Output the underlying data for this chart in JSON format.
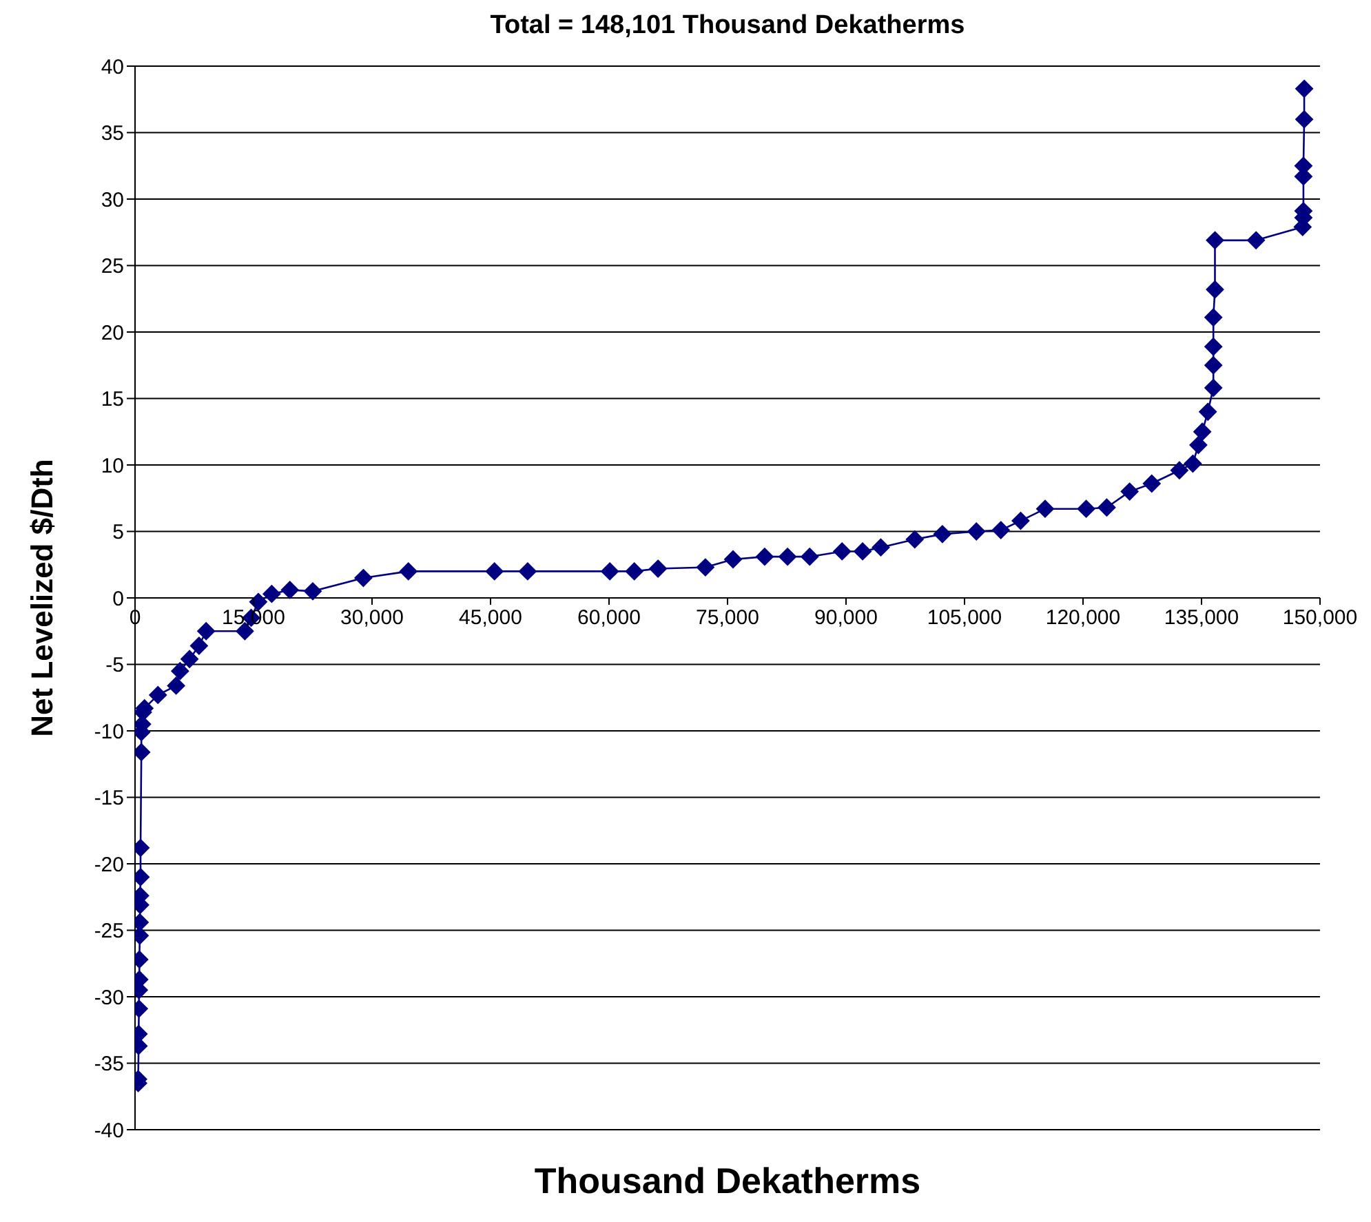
{
  "chart_data": {
    "type": "line",
    "title": "Total = 148,101 Thousand Dekatherms",
    "xlabel": "Thousand Dekatherms",
    "ylabel": "Net Levelized $/Dth",
    "xlim": [
      0,
      150000
    ],
    "xticks": [
      0,
      {
        "value": 15000,
        "label": "15,000"
      },
      {
        "value": 30000,
        "label": "30,000"
      },
      {
        "value": 45000,
        "label": "45,000"
      },
      {
        "value": 60000,
        "label": "60,000"
      },
      {
        "value": 75000,
        "label": "75,000"
      },
      {
        "value": 90000,
        "label": "90,000"
      },
      {
        "value": 105000,
        "label": "105,000"
      },
      {
        "value": 120000,
        "label": "120,000"
      },
      {
        "value": 135000,
        "label": "135,000"
      },
      {
        "value": 150000,
        "label": "150,000"
      }
    ],
    "ylim": [
      -40,
      40
    ],
    "yticks": [
      -40,
      -35,
      -30,
      -25,
      -20,
      -15,
      -10,
      -5,
      0,
      5,
      10,
      15,
      20,
      25,
      30,
      35,
      40
    ],
    "grid": "y",
    "marker": "diamond",
    "line_style": "solid",
    "series": [
      {
        "color": "#000080",
        "x": [
          400,
          400,
          450,
          450,
          500,
          500,
          550,
          550,
          600,
          600,
          650,
          650,
          700,
          700,
          800,
          800,
          900,
          1000,
          1200,
          2900,
          5200,
          5700,
          6900,
          8100,
          9000,
          13900,
          14700,
          15600,
          17300,
          19600,
          22500,
          28900,
          34600,
          45500,
          49700,
          60100,
          63200,
          66200,
          72200,
          75700,
          79700,
          82600,
          85400,
          89500,
          92100,
          94400,
          98700,
          102200,
          106500,
          109600,
          112100,
          115200,
          120400,
          123000,
          125900,
          128700,
          132200,
          133900,
          134600,
          135100,
          135800,
          136500,
          136500,
          136500,
          136500,
          136700,
          136700,
          141900,
          147800,
          147900,
          147900,
          147900,
          147900,
          148000,
          148000
        ],
        "values": [
          -36.5,
          -36.2,
          -33.7,
          -32.8,
          -30.9,
          -29.5,
          -28.7,
          -27.2,
          -25.4,
          -24.4,
          -23.1,
          -22.4,
          -21.0,
          -18.8,
          -11.6,
          -10.1,
          -9.5,
          -8.6,
          -8.3,
          -7.3,
          -6.6,
          -5.5,
          -4.6,
          -3.6,
          -2.5,
          -2.5,
          -1.5,
          -0.3,
          0.3,
          0.6,
          0.5,
          1.5,
          2.0,
          2.0,
          2.0,
          2.0,
          2.0,
          2.2,
          2.3,
          2.9,
          3.1,
          3.1,
          3.1,
          3.5,
          3.5,
          3.8,
          4.4,
          4.8,
          5.0,
          5.1,
          5.8,
          6.7,
          6.7,
          6.8,
          8.0,
          8.6,
          9.6,
          10.1,
          11.5,
          12.5,
          14.0,
          15.8,
          17.5,
          18.9,
          21.1,
          23.2,
          26.9,
          26.9,
          27.9,
          28.6,
          29.1,
          31.7,
          32.5,
          36.0,
          38.3
        ]
      }
    ]
  }
}
